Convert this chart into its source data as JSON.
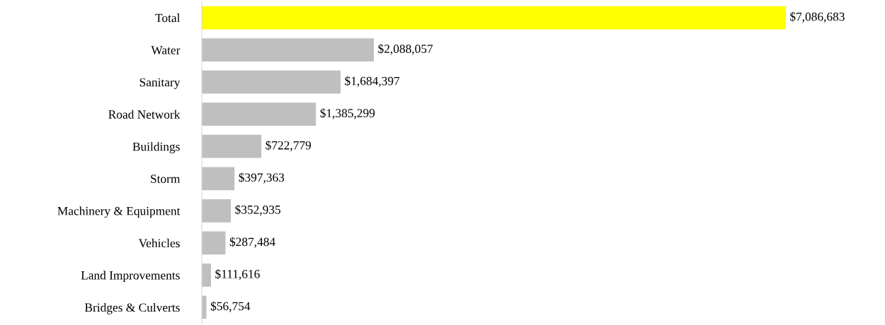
{
  "chart_data": {
    "type": "bar",
    "orientation": "horizontal",
    "categories": [
      "Total",
      "Water",
      "Sanitary",
      "Road Network",
      "Buildings",
      "Storm",
      "Machinery & Equipment",
      "Vehicles",
      "Land Improvements",
      "Bridges & Culverts"
    ],
    "values": [
      7086683,
      2088057,
      1684397,
      1385299,
      722779,
      397363,
      352935,
      287484,
      111616,
      56754
    ],
    "colors": [
      "#ffff00",
      "#bfbfbf",
      "#bfbfbf",
      "#bfbfbf",
      "#bfbfbf",
      "#bfbfbf",
      "#bfbfbf",
      "#bfbfbf",
      "#bfbfbf",
      "#bfbfbf"
    ],
    "value_labels": [
      "$7,086,683",
      "$2,088,057",
      "$1,684,397",
      "$1,385,299",
      "$722,779",
      "$397,363",
      "$352,935",
      "$287,484",
      "$111,616",
      "$56,754"
    ],
    "tick_labels": "y",
    "grid": false,
    "legend": false
  }
}
